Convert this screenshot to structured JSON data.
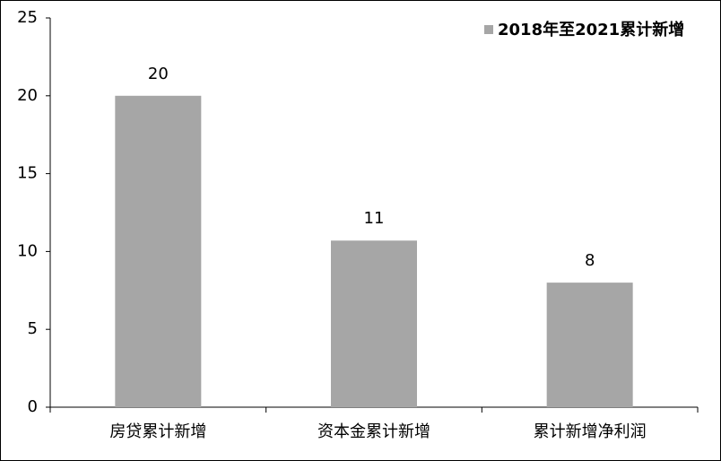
{
  "chart_data": {
    "type": "bar",
    "categories": [
      "房贷累计新增",
      "资本金累计新增",
      "累计新增净利润"
    ],
    "series": [
      {
        "name": "2018年至2021累计新增",
        "color": "#a6a6a6",
        "values": [
          20,
          10.7,
          8
        ],
        "value_labels": [
          "20",
          "11",
          "8"
        ]
      }
    ],
    "ylim": [
      0,
      25
    ],
    "yticks": [
      0,
      5,
      10,
      15,
      20,
      25
    ],
    "grid": false,
    "legend": "top-right"
  }
}
